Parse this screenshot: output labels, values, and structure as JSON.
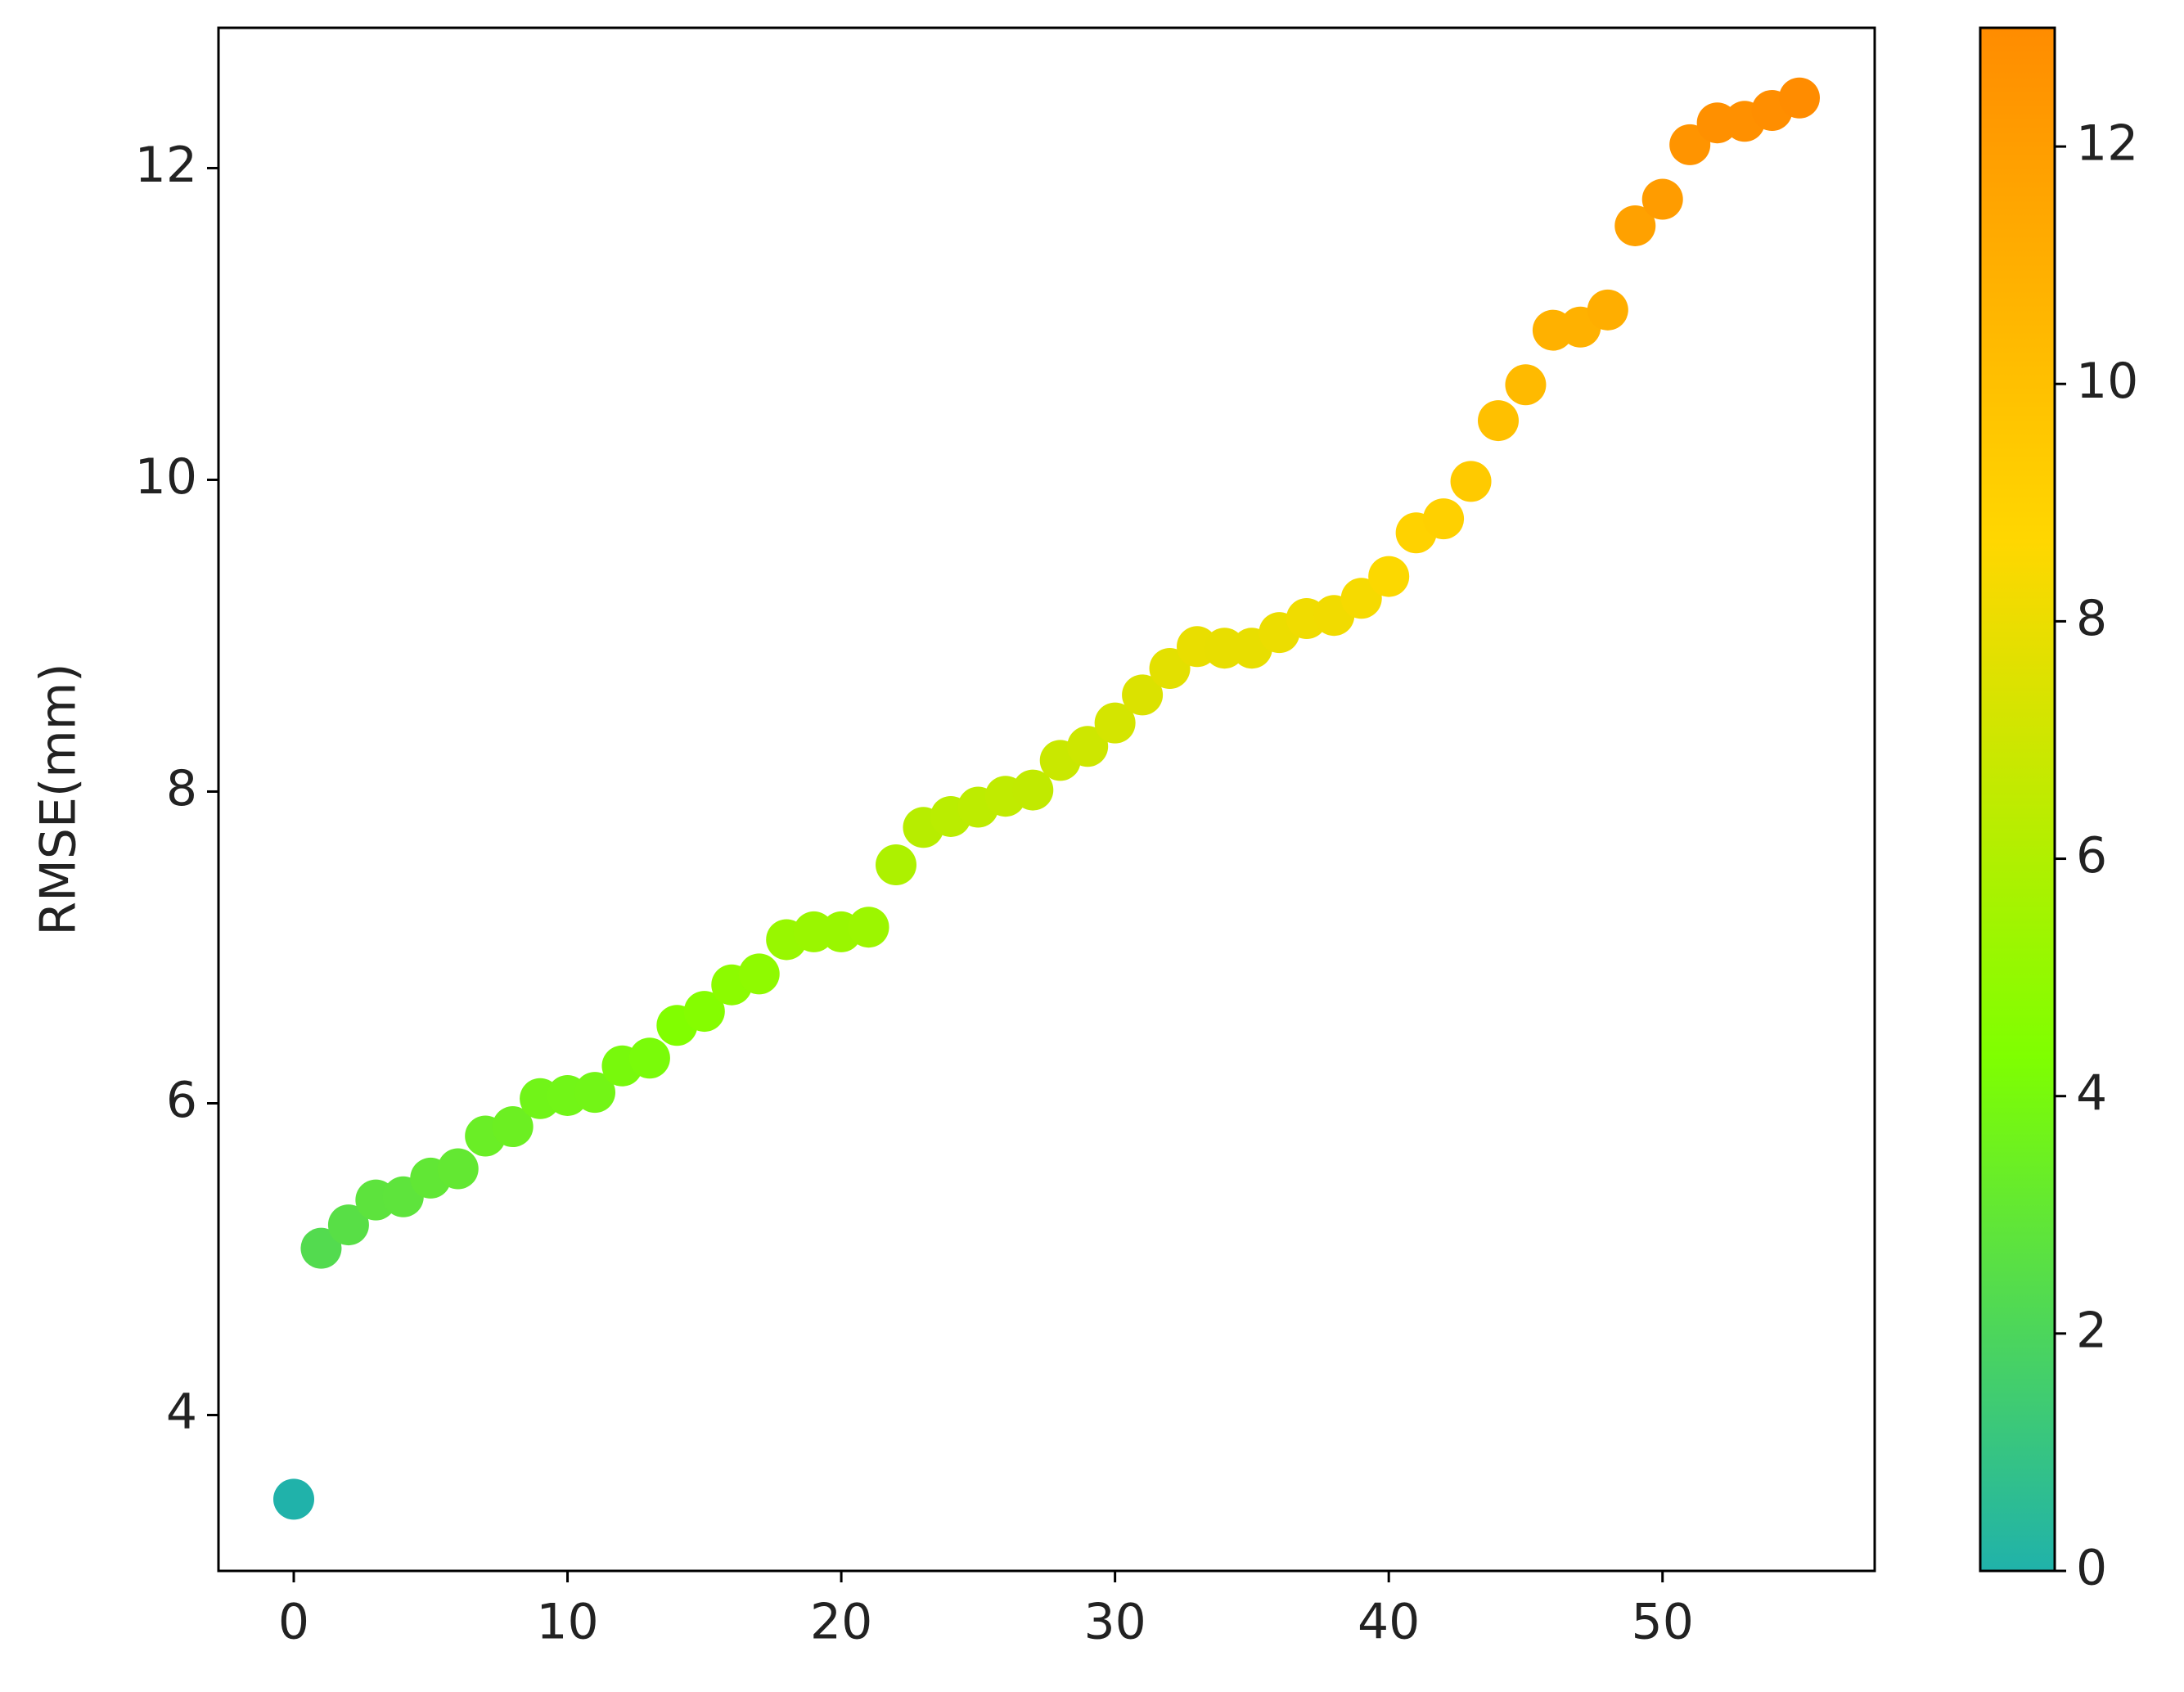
{
  "chart_data": {
    "type": "scatter",
    "y_label": "RMSE(mm)",
    "x": [
      0,
      1,
      2,
      3,
      4,
      5,
      6,
      7,
      8,
      9,
      10,
      11,
      12,
      13,
      14,
      15,
      16,
      17,
      18,
      19,
      20,
      21,
      22,
      23,
      24,
      25,
      26,
      27,
      28,
      29,
      30,
      31,
      32,
      33,
      34,
      35,
      36,
      37,
      38,
      39,
      40,
      41,
      42,
      43,
      44,
      45,
      46,
      47,
      48,
      49,
      50,
      51,
      52,
      53,
      54,
      55
    ],
    "series": [
      {
        "values": [
          3.46,
          5.07,
          5.22,
          5.38,
          5.4,
          5.52,
          5.58,
          5.79,
          5.85,
          6.03,
          6.05,
          6.07,
          6.24,
          6.29,
          6.5,
          6.59,
          6.76,
          6.83,
          7.05,
          7.1,
          7.1,
          7.13,
          7.53,
          7.77,
          7.84,
          7.9,
          7.97,
          8.01,
          8.2,
          8.29,
          8.44,
          8.62,
          8.79,
          8.93,
          8.92,
          8.92,
          9.02,
          9.11,
          9.13,
          9.24,
          9.38,
          9.66,
          9.75,
          9.99,
          10.38,
          10.61,
          10.96,
          10.98,
          11.09,
          11.63,
          11.8,
          12.15,
          12.29,
          12.3,
          12.37,
          12.45
        ]
      }
    ],
    "xlim": [
      -2.75,
      57.75
    ],
    "xticks": [
      0,
      10,
      20,
      30,
      40,
      50
    ],
    "ylim": [
      3.0,
      12.9
    ],
    "yticks": [
      4,
      6,
      8,
      10,
      12
    ],
    "colormap": [
      "#20b2aa",
      "#7fff00",
      "#ffd700",
      "#ff8c00"
    ],
    "colorbar": {
      "clim": [
        0,
        13
      ],
      "ticks": [
        0,
        2,
        4,
        6,
        8,
        10,
        12
      ]
    }
  }
}
